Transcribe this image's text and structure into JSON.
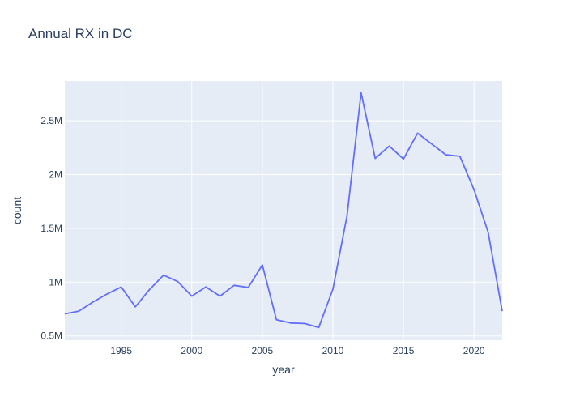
{
  "chart_data": {
    "type": "line",
    "title": "Annual RX in DC",
    "xlabel": "year",
    "ylabel": "count",
    "xlim": [
      1991,
      2022
    ],
    "ylim": [
      460000,
      2870000
    ],
    "xticks": [
      1995,
      2000,
      2005,
      2010,
      2015,
      2020
    ],
    "xtick_labels": [
      "1995",
      "2000",
      "2005",
      "2010",
      "2015",
      "2020"
    ],
    "yticks": [
      500000,
      1000000,
      1500000,
      2000000,
      2500000
    ],
    "ytick_labels": [
      "0.5M",
      "1M",
      "1.5M",
      "2M",
      "2.5M"
    ],
    "grid": true,
    "colors": {
      "plot_bg": "#e5ecf6",
      "grid": "#ffffff",
      "line": "#636efa",
      "text": "#2a3f5f"
    },
    "series": [
      {
        "name": "count",
        "x": [
          1991,
          1992,
          1993,
          1994,
          1995,
          1996,
          1997,
          1998,
          1999,
          2000,
          2001,
          2002,
          2003,
          2004,
          2005,
          2006,
          2007,
          2008,
          2009,
          2010,
          2011,
          2012,
          2013,
          2014,
          2015,
          2016,
          2017,
          2018,
          2019,
          2020,
          2021,
          2022
        ],
        "values": [
          705000,
          730000,
          815000,
          890000,
          955000,
          770000,
          930000,
          1065000,
          1005000,
          870000,
          955000,
          870000,
          970000,
          950000,
          1160000,
          650000,
          620000,
          615000,
          578000,
          935000,
          1615000,
          2760000,
          2150000,
          2265000,
          2145000,
          2385000,
          2285000,
          2185000,
          2170000,
          1860000,
          1465000,
          730000
        ]
      }
    ]
  }
}
